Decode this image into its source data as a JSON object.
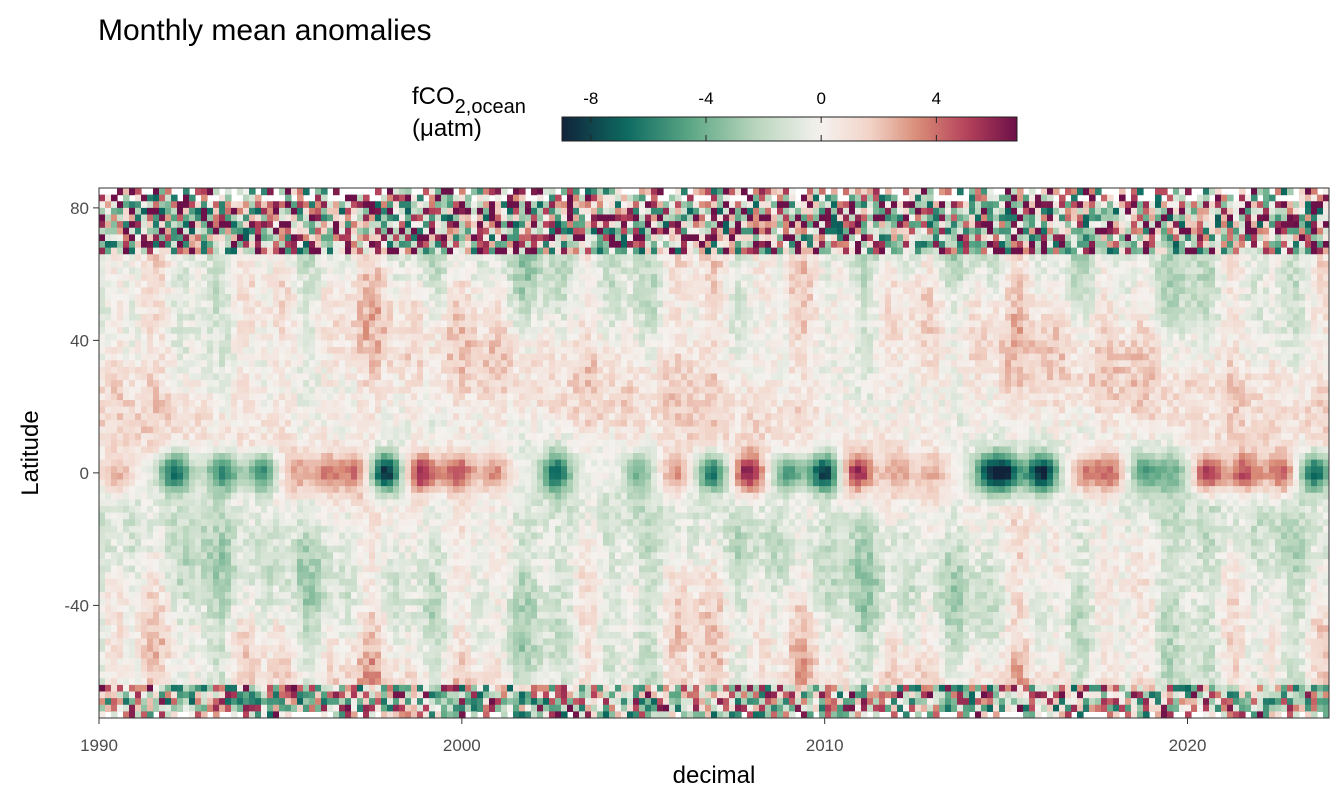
{
  "chart_data": {
    "type": "heatmap",
    "title": "Monthly mean anomalies",
    "xlabel": "decimal",
    "ylabel": "Latitude",
    "xlim": [
      1990,
      2023.9
    ],
    "ylim": [
      -74,
      86
    ],
    "x_ticks": [
      1990,
      2000,
      2010,
      2020
    ],
    "x_tick_labels": [
      "1990",
      "2000",
      "2010",
      "2020"
    ],
    "y_ticks": [
      80,
      40,
      0,
      -40
    ],
    "y_tick_labels": [
      "80",
      "40",
      "0",
      "-40"
    ],
    "legend": {
      "title_main": "fCO",
      "title_sub": "2,ocean",
      "title_unit": "(μatm)",
      "placement": "top",
      "range": [
        -9,
        6.8
      ],
      "ticks": [
        -8,
        -4,
        0,
        4
      ],
      "tick_labels": [
        "-8",
        "-4",
        "0",
        "4"
      ],
      "colors": [
        "#11233a",
        "#0d6b61",
        "#5ea886",
        "#b9d6bd",
        "#f5f2ef",
        "#f2d3c7",
        "#d88a76",
        "#b4405a",
        "#6b1048"
      ]
    },
    "grid": false,
    "equatorial_band_anomalies": [
      {
        "year": 1990.5,
        "value": 2.5
      },
      {
        "year": 1992.1,
        "value": -7.0
      },
      {
        "year": 1993.4,
        "value": -6.0
      },
      {
        "year": 1994.5,
        "value": -5.5
      },
      {
        "year": 1995.4,
        "value": 3.0
      },
      {
        "year": 1996.3,
        "value": 3.5
      },
      {
        "year": 1997.1,
        "value": 4.0
      },
      {
        "year": 1997.9,
        "value": -9.0
      },
      {
        "year": 1998.9,
        "value": 6.0
      },
      {
        "year": 1999.9,
        "value": 5.0
      },
      {
        "year": 2000.9,
        "value": 3.5
      },
      {
        "year": 2002.6,
        "value": -7.0
      },
      {
        "year": 2004.9,
        "value": -4.0
      },
      {
        "year": 2005.9,
        "value": 3.5
      },
      {
        "year": 2006.9,
        "value": -6.5
      },
      {
        "year": 2007.9,
        "value": 6.5
      },
      {
        "year": 2009.0,
        "value": -5.0
      },
      {
        "year": 2010.0,
        "value": -8.5
      },
      {
        "year": 2010.9,
        "value": 6.0
      },
      {
        "year": 2012.0,
        "value": 3.0
      },
      {
        "year": 2013.0,
        "value": 2.5
      },
      {
        "year": 2014.5,
        "value": -6.0
      },
      {
        "year": 2015.0,
        "value": -7.5
      },
      {
        "year": 2016.0,
        "value": -9.0
      },
      {
        "year": 2017.2,
        "value": 3.5
      },
      {
        "year": 2017.9,
        "value": 4.0
      },
      {
        "year": 2018.8,
        "value": -5.0
      },
      {
        "year": 2019.6,
        "value": -4.0
      },
      {
        "year": 2020.6,
        "value": 5.5
      },
      {
        "year": 2021.6,
        "value": 5.0
      },
      {
        "year": 2022.6,
        "value": 4.5
      },
      {
        "year": 2023.5,
        "value": -7.0
      }
    ]
  }
}
